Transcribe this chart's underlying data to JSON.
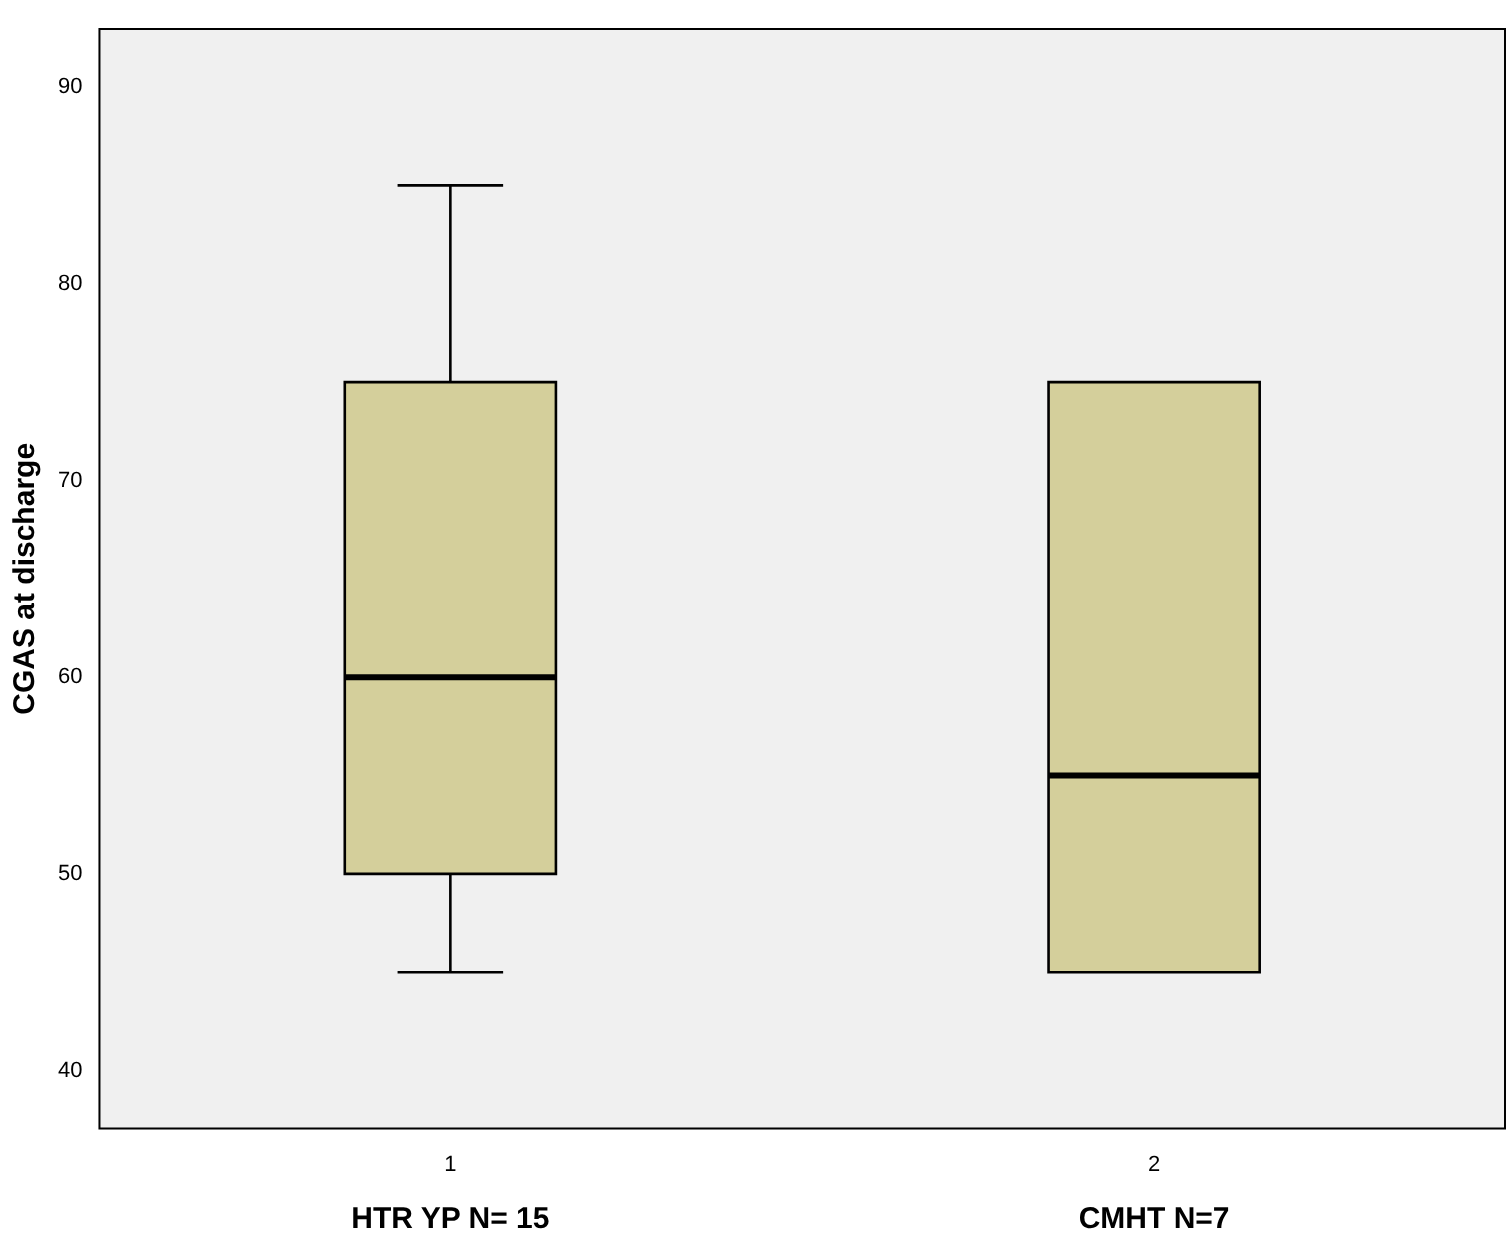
{
  "chart_data": {
    "type": "box",
    "ylabel": "CGAS at discharge",
    "categories": [
      "1",
      "2"
    ],
    "boxes": [
      {
        "low": 45,
        "q1": 50,
        "median": 60,
        "q3": 75,
        "high": 85
      },
      {
        "low": 45,
        "q1": 45,
        "median": 55,
        "q3": 75,
        "high": 75
      }
    ],
    "color": "#d4cf9b",
    "ylim": [
      37,
      93
    ],
    "yticks": [
      40,
      50,
      60,
      70,
      80,
      90
    ],
    "annotations": [
      "HTR YP N= 15",
      "CMHT N=7"
    ]
  }
}
